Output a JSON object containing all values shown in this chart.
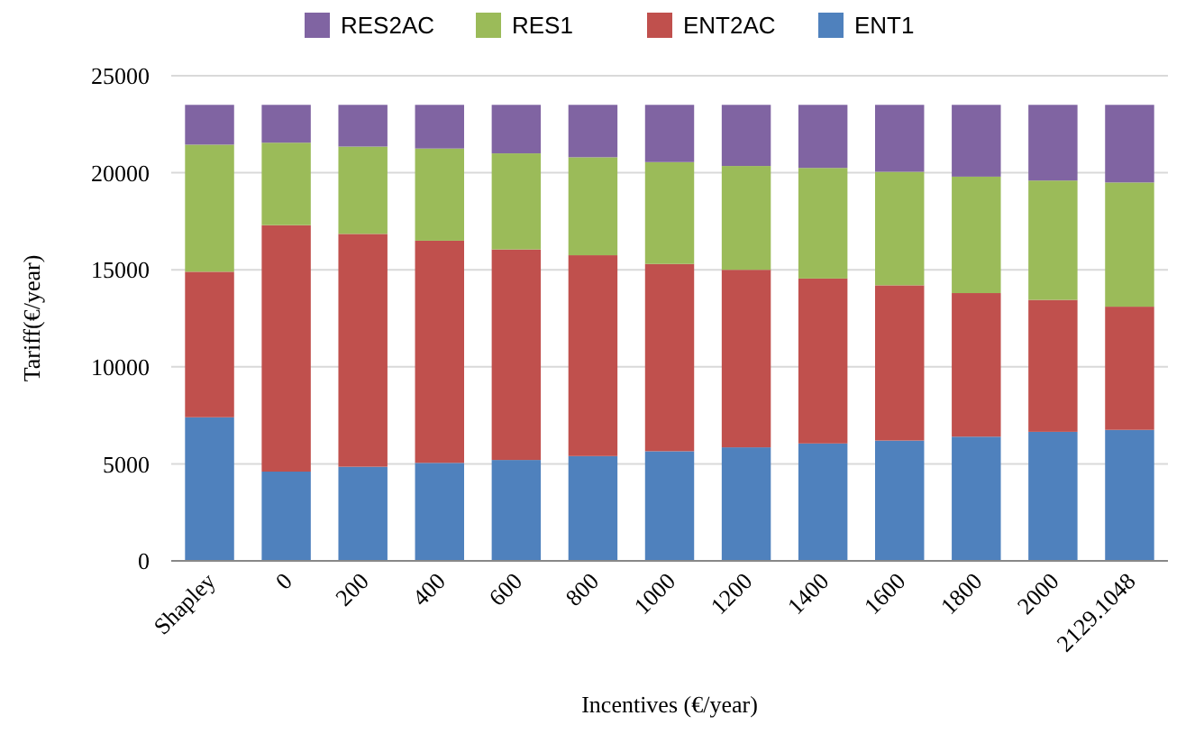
{
  "chart_data": {
    "type": "bar",
    "stacked": true,
    "xlabel": "Incentives (€/year)",
    "ylabel": "Tariff(€/year)",
    "categories": [
      "Shapley",
      "0",
      "200",
      "400",
      "600",
      "800",
      "1000",
      "1200",
      "1400",
      "1600",
      "1800",
      "2000",
      "2129.1048"
    ],
    "series": [
      {
        "name": "ENT1",
        "color": "#4f81bd",
        "values": [
          7400,
          4600,
          4850,
          5050,
          5200,
          5400,
          5650,
          5850,
          6050,
          6200,
          6400,
          6650,
          6750
        ]
      },
      {
        "name": "ENT2AC",
        "color": "#c0504d",
        "values": [
          7500,
          12700,
          12000,
          11450,
          10850,
          10350,
          9650,
          9150,
          8500,
          8000,
          7400,
          6800,
          6350
        ]
      },
      {
        "name": "RES1",
        "color": "#9bbb59",
        "values": [
          6550,
          4250,
          4500,
          4750,
          4950,
          5050,
          5250,
          5350,
          5700,
          5850,
          6000,
          6150,
          6400
        ]
      },
      {
        "name": "RES2AC",
        "color": "#8064a2",
        "values": [
          2050,
          1950,
          2150,
          2250,
          2500,
          2700,
          2950,
          3150,
          3250,
          3450,
          3700,
          3900,
          4000
        ]
      }
    ],
    "ylim": [
      0,
      25000
    ],
    "yticks": [
      0,
      5000,
      10000,
      15000,
      20000,
      25000
    ],
    "grid": "y",
    "legend": "top"
  }
}
